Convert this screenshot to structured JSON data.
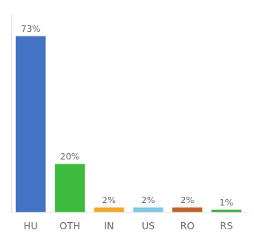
{
  "chart_data": {
    "type": "bar",
    "categories": [
      "HU",
      "OTH",
      "IN",
      "US",
      "RO",
      "RS"
    ],
    "values": [
      73,
      20,
      2,
      2,
      2,
      1
    ],
    "value_labels": [
      "73%",
      "20%",
      "2%",
      "2%",
      "2%",
      "1%"
    ],
    "colors": [
      "#4472c4",
      "#3dbb3d",
      "#f0a830",
      "#7ec8e3",
      "#c0622b",
      "#3aaa3a"
    ],
    "ylim": [
      0,
      82
    ],
    "grid": false,
    "data_labels": true,
    "tick_labels": "x"
  }
}
